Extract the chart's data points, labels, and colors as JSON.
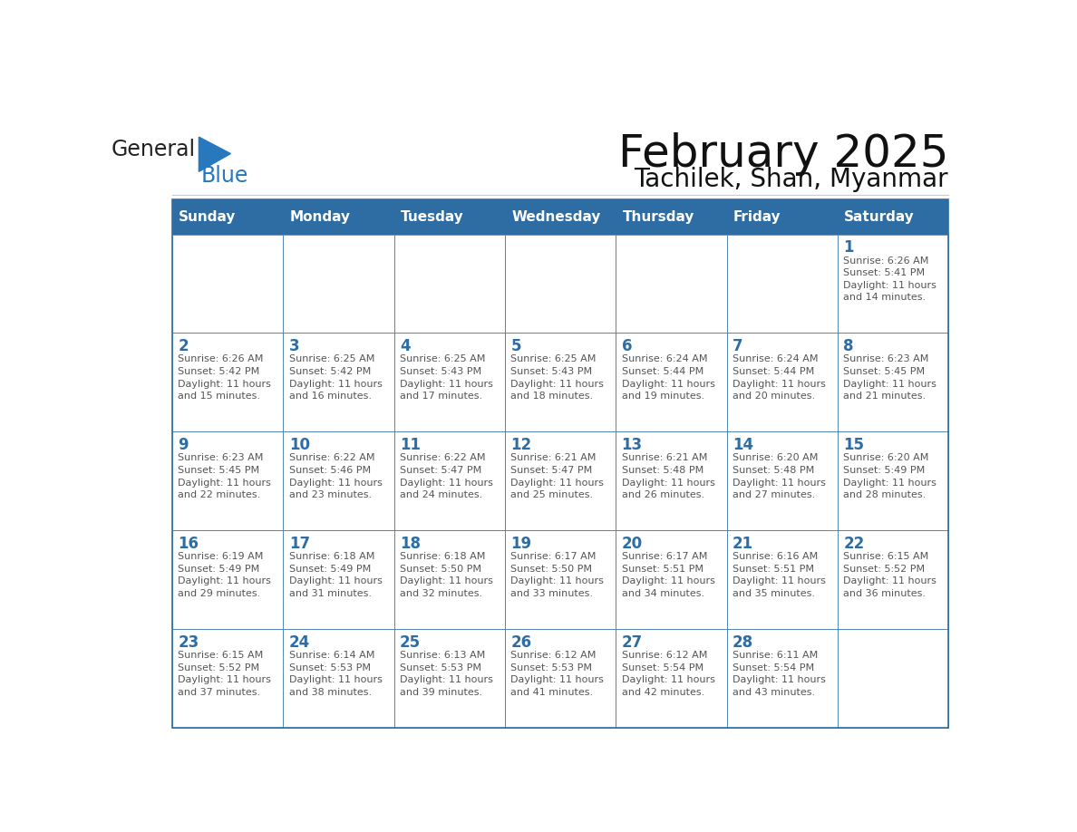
{
  "title": "February 2025",
  "subtitle": "Tachilek, Shan, Myanmar",
  "header_bg": "#2E6DA4",
  "header_text_color": "#FFFFFF",
  "cell_bg": "#FFFFFF",
  "cell_border_color": "#2E6DA4",
  "day_num_color": "#2E6DA4",
  "cell_text_color": "#555555",
  "days_of_week": [
    "Sunday",
    "Monday",
    "Tuesday",
    "Wednesday",
    "Thursday",
    "Friday",
    "Saturday"
  ],
  "weeks": [
    [
      {
        "day": 0,
        "info": ""
      },
      {
        "day": 0,
        "info": ""
      },
      {
        "day": 0,
        "info": ""
      },
      {
        "day": 0,
        "info": ""
      },
      {
        "day": 0,
        "info": ""
      },
      {
        "day": 0,
        "info": ""
      },
      {
        "day": 1,
        "info": "Sunrise: 6:26 AM\nSunset: 5:41 PM\nDaylight: 11 hours\nand 14 minutes."
      }
    ],
    [
      {
        "day": 2,
        "info": "Sunrise: 6:26 AM\nSunset: 5:42 PM\nDaylight: 11 hours\nand 15 minutes."
      },
      {
        "day": 3,
        "info": "Sunrise: 6:25 AM\nSunset: 5:42 PM\nDaylight: 11 hours\nand 16 minutes."
      },
      {
        "day": 4,
        "info": "Sunrise: 6:25 AM\nSunset: 5:43 PM\nDaylight: 11 hours\nand 17 minutes."
      },
      {
        "day": 5,
        "info": "Sunrise: 6:25 AM\nSunset: 5:43 PM\nDaylight: 11 hours\nand 18 minutes."
      },
      {
        "day": 6,
        "info": "Sunrise: 6:24 AM\nSunset: 5:44 PM\nDaylight: 11 hours\nand 19 minutes."
      },
      {
        "day": 7,
        "info": "Sunrise: 6:24 AM\nSunset: 5:44 PM\nDaylight: 11 hours\nand 20 minutes."
      },
      {
        "day": 8,
        "info": "Sunrise: 6:23 AM\nSunset: 5:45 PM\nDaylight: 11 hours\nand 21 minutes."
      }
    ],
    [
      {
        "day": 9,
        "info": "Sunrise: 6:23 AM\nSunset: 5:45 PM\nDaylight: 11 hours\nand 22 minutes."
      },
      {
        "day": 10,
        "info": "Sunrise: 6:22 AM\nSunset: 5:46 PM\nDaylight: 11 hours\nand 23 minutes."
      },
      {
        "day": 11,
        "info": "Sunrise: 6:22 AM\nSunset: 5:47 PM\nDaylight: 11 hours\nand 24 minutes."
      },
      {
        "day": 12,
        "info": "Sunrise: 6:21 AM\nSunset: 5:47 PM\nDaylight: 11 hours\nand 25 minutes."
      },
      {
        "day": 13,
        "info": "Sunrise: 6:21 AM\nSunset: 5:48 PM\nDaylight: 11 hours\nand 26 minutes."
      },
      {
        "day": 14,
        "info": "Sunrise: 6:20 AM\nSunset: 5:48 PM\nDaylight: 11 hours\nand 27 minutes."
      },
      {
        "day": 15,
        "info": "Sunrise: 6:20 AM\nSunset: 5:49 PM\nDaylight: 11 hours\nand 28 minutes."
      }
    ],
    [
      {
        "day": 16,
        "info": "Sunrise: 6:19 AM\nSunset: 5:49 PM\nDaylight: 11 hours\nand 29 minutes."
      },
      {
        "day": 17,
        "info": "Sunrise: 6:18 AM\nSunset: 5:49 PM\nDaylight: 11 hours\nand 31 minutes."
      },
      {
        "day": 18,
        "info": "Sunrise: 6:18 AM\nSunset: 5:50 PM\nDaylight: 11 hours\nand 32 minutes."
      },
      {
        "day": 19,
        "info": "Sunrise: 6:17 AM\nSunset: 5:50 PM\nDaylight: 11 hours\nand 33 minutes."
      },
      {
        "day": 20,
        "info": "Sunrise: 6:17 AM\nSunset: 5:51 PM\nDaylight: 11 hours\nand 34 minutes."
      },
      {
        "day": 21,
        "info": "Sunrise: 6:16 AM\nSunset: 5:51 PM\nDaylight: 11 hours\nand 35 minutes."
      },
      {
        "day": 22,
        "info": "Sunrise: 6:15 AM\nSunset: 5:52 PM\nDaylight: 11 hours\nand 36 minutes."
      }
    ],
    [
      {
        "day": 23,
        "info": "Sunrise: 6:15 AM\nSunset: 5:52 PM\nDaylight: 11 hours\nand 37 minutes."
      },
      {
        "day": 24,
        "info": "Sunrise: 6:14 AM\nSunset: 5:53 PM\nDaylight: 11 hours\nand 38 minutes."
      },
      {
        "day": 25,
        "info": "Sunrise: 6:13 AM\nSunset: 5:53 PM\nDaylight: 11 hours\nand 39 minutes."
      },
      {
        "day": 26,
        "info": "Sunrise: 6:12 AM\nSunset: 5:53 PM\nDaylight: 11 hours\nand 41 minutes."
      },
      {
        "day": 27,
        "info": "Sunrise: 6:12 AM\nSunset: 5:54 PM\nDaylight: 11 hours\nand 42 minutes."
      },
      {
        "day": 28,
        "info": "Sunrise: 6:11 AM\nSunset: 5:54 PM\nDaylight: 11 hours\nand 43 minutes."
      },
      {
        "day": 0,
        "info": ""
      }
    ]
  ],
  "logo_general_color": "#222222",
  "logo_blue_color": "#2878BE",
  "logo_triangle_color": "#2878BE"
}
